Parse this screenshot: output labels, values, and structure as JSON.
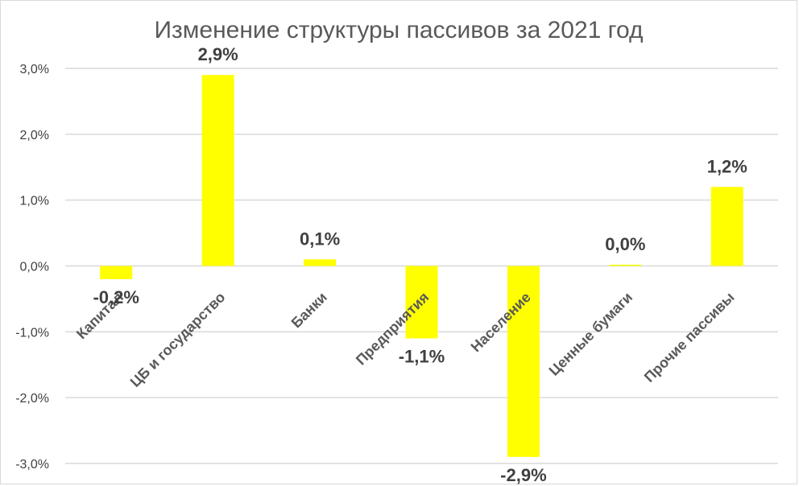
{
  "chart_data": {
    "type": "bar",
    "title": "Изменение структуры пассивов за 2021 год",
    "categories": [
      "Капитал",
      "ЦБ и государство",
      "Банки",
      "Предприятия",
      "Население",
      "Ценные бумаги",
      "Прочие пассивы"
    ],
    "values": [
      -0.2,
      2.9,
      0.1,
      -1.1,
      -2.9,
      0.0,
      1.2
    ],
    "data_labels": [
      "-0,2%",
      "2,9%",
      "0,1%",
      "-1,1%",
      "-2,9%",
      "0,0%",
      "1,2%"
    ],
    "unit": "%",
    "ylim": [
      -3,
      3
    ],
    "yticks": [
      3,
      2,
      1,
      0,
      -1,
      -2,
      -3
    ],
    "ytick_labels": [
      "3,0%",
      "2,0%",
      "1,0%",
      "0,0%",
      "-1,0%",
      "-2,0%",
      "-3,0%"
    ],
    "bar_color": "#ffff00",
    "grid": true,
    "legend": "none"
  }
}
